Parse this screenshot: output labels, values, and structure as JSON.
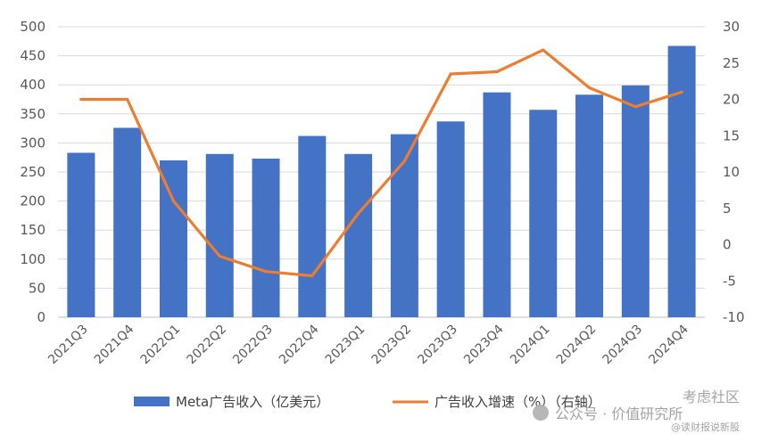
{
  "chart_data": {
    "type": "bar+line",
    "categories": [
      "2021Q3",
      "2021Q4",
      "2022Q1",
      "2022Q2",
      "2022Q3",
      "2022Q4",
      "2023Q1",
      "2023Q2",
      "2023Q3",
      "2023Q4",
      "2024Q1",
      "2024Q2",
      "2024Q3",
      "2024Q4"
    ],
    "series": [
      {
        "name": "Meta广告收入（亿美元）",
        "type": "bar",
        "axis": "left",
        "color": "#4472c4",
        "values": [
          283,
          326,
          270,
          281,
          273,
          312,
          281,
          315,
          337,
          387,
          357,
          383,
          399,
          467
        ]
      },
      {
        "name": "广告收入增速（%）（右轴）",
        "type": "line",
        "axis": "right",
        "color": "#ed7d31",
        "values": [
          20.0,
          20.0,
          6.0,
          -1.6,
          -3.7,
          -4.3,
          4.3,
          11.5,
          23.5,
          23.8,
          26.8,
          21.6,
          19.0,
          21.0
        ]
      }
    ],
    "y_left": {
      "min": 0,
      "max": 500,
      "step": 50,
      "ticks": [
        "0",
        "50",
        "100",
        "150",
        "200",
        "250",
        "300",
        "350",
        "400",
        "450",
        "500"
      ]
    },
    "y_right": {
      "min": -10,
      "max": 30,
      "step": 5,
      "ticks": [
        "-10",
        "-5",
        "0",
        "5",
        "10",
        "15",
        "20",
        "25",
        "30"
      ]
    },
    "grid": true,
    "legend_position": "bottom"
  },
  "watermark": {
    "text1": "公众号 · 价值研究所",
    "text2": "考虑社区",
    "text3": "@读财报说新股"
  }
}
